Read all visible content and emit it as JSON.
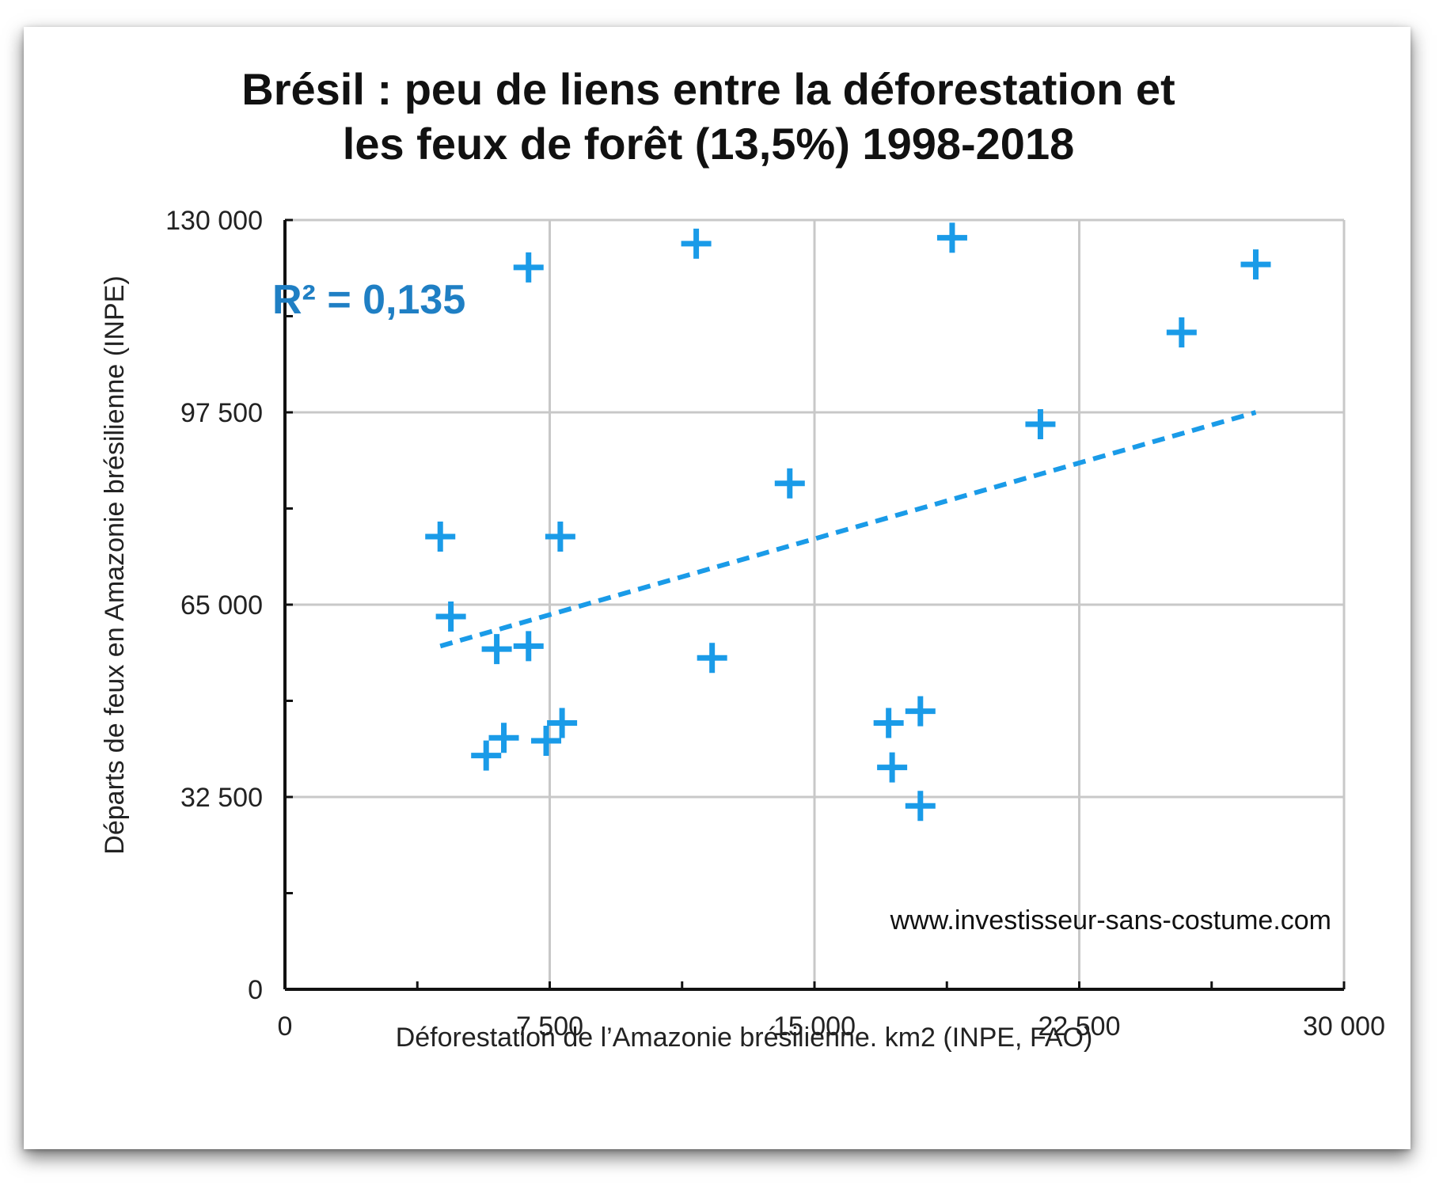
{
  "chart_data": {
    "type": "scatter",
    "title_lines": [
      "Brésil : peu de liens entre la déforestation et",
      "les feux de forêt (13,5%) 1998-2018"
    ],
    "xlabel": "Déforestation de l’Amazonie brésilienne. km2 (INPE, FAO)",
    "ylabel": "Départs de feux en Amazonie brésilienne (INPE)",
    "xlim": [
      0,
      30000
    ],
    "ylim": [
      0,
      130000
    ],
    "x_ticks": [
      {
        "value": 0,
        "label": "0"
      },
      {
        "value": 7500,
        "label": "7 500"
      },
      {
        "value": 15000,
        "label": "15 000"
      },
      {
        "value": 22500,
        "label": "22 500"
      },
      {
        "value": 30000,
        "label": "30 000"
      }
    ],
    "y_ticks": [
      {
        "value": 0,
        "label": "0"
      },
      {
        "value": 32500,
        "label": "32 500"
      },
      {
        "value": 65000,
        "label": "65 000"
      },
      {
        "value": 97500,
        "label": "97 500"
      },
      {
        "value": 130000,
        "label": "130 000"
      }
    ],
    "x_minor_step": 3750,
    "y_minor_step": 16250,
    "grid": true,
    "marker": "plus",
    "color": "#1a9be8",
    "points": [
      {
        "x": 4400,
        "y": 76500
      },
      {
        "x": 4700,
        "y": 63000
      },
      {
        "x": 5700,
        "y": 39500
      },
      {
        "x": 6000,
        "y": 57500
      },
      {
        "x": 6200,
        "y": 42500
      },
      {
        "x": 6900,
        "y": 122000
      },
      {
        "x": 6900,
        "y": 58000
      },
      {
        "x": 7400,
        "y": 42000
      },
      {
        "x": 7800,
        "y": 76500
      },
      {
        "x": 7850,
        "y": 45000
      },
      {
        "x": 11650,
        "y": 126000
      },
      {
        "x": 12100,
        "y": 56000
      },
      {
        "x": 14300,
        "y": 85500
      },
      {
        "x": 17100,
        "y": 45000
      },
      {
        "x": 17200,
        "y": 37500
      },
      {
        "x": 18000,
        "y": 47000
      },
      {
        "x": 18000,
        "y": 31000
      },
      {
        "x": 18900,
        "y": 127000
      },
      {
        "x": 21400,
        "y": 95500
      },
      {
        "x": 25400,
        "y": 111000
      },
      {
        "x": 27500,
        "y": 122500
      }
    ],
    "trendline": {
      "r2_label": "R² = 0,135",
      "color": "#1a9be8",
      "start": {
        "x": 4400,
        "y": 58000
      },
      "end": {
        "x": 27500,
        "y": 97500
      }
    },
    "watermark": "www.investisseur-sans-costume.com"
  }
}
